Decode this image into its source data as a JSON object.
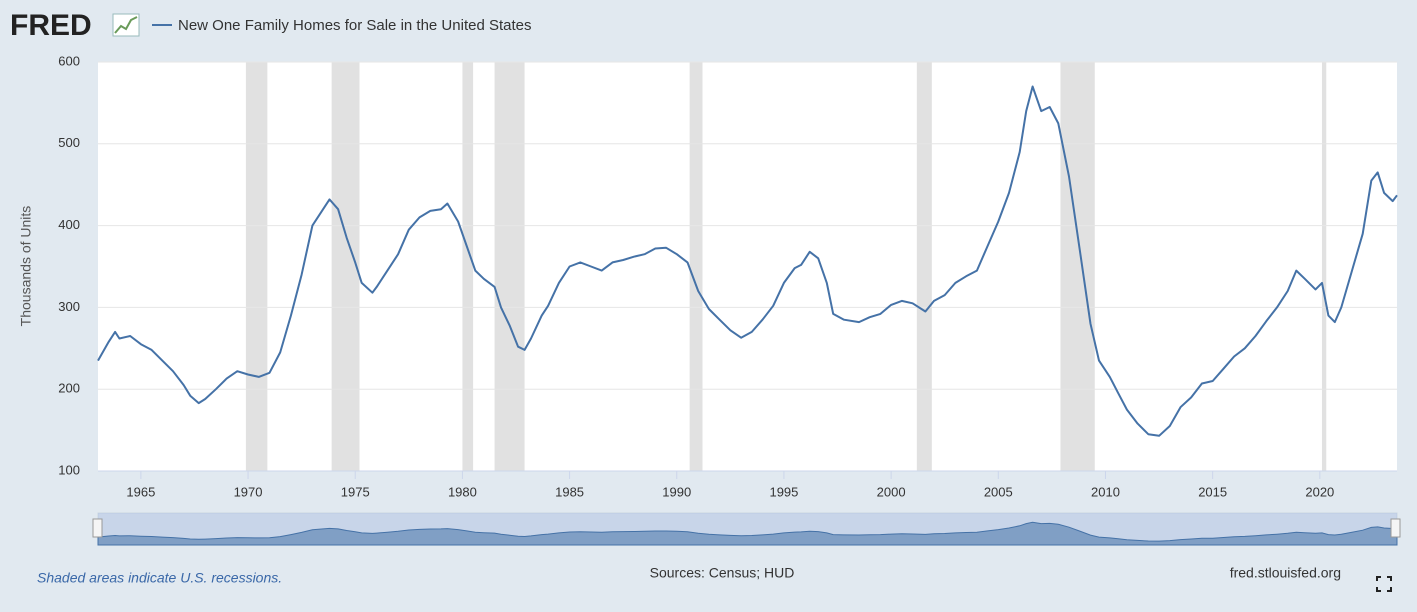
{
  "chart_data": {
    "type": "line",
    "series": [
      {
        "name": "New One Family Homes for Sale in the United States",
        "color": "#4572a7",
        "values": [
          235,
          258,
          270,
          262,
          265,
          255,
          248,
          235,
          222,
          205,
          192,
          183,
          188,
          200,
          213,
          222,
          218,
          215,
          220,
          245,
          290,
          340,
          400,
          420,
          432,
          420,
          385,
          355,
          330,
          318,
          325,
          345,
          365,
          395,
          410,
          418,
          420,
          427,
          405,
          375,
          345,
          335,
          325,
          300,
          278,
          252,
          248,
          262,
          290,
          302,
          330,
          350,
          355,
          350,
          345,
          355,
          358,
          362,
          365,
          372,
          373,
          365,
          355,
          320,
          298,
          285,
          272,
          263,
          270,
          285,
          302,
          330,
          348,
          352,
          368,
          360,
          330,
          292,
          285,
          282,
          288,
          292,
          303,
          308,
          305,
          295,
          308,
          315,
          330,
          338,
          345,
          375,
          405,
          440,
          490,
          540,
          570,
          540,
          545,
          525,
          460,
          370,
          280,
          235,
          215,
          195,
          175,
          158,
          145,
          143,
          155,
          178,
          190,
          207,
          210,
          225,
          240,
          250,
          265,
          283,
          300,
          320,
          345,
          335,
          322,
          330,
          290,
          282,
          300,
          345,
          390,
          455,
          465,
          440,
          430,
          437
        ]
      }
    ],
    "x": [
      1963.0,
      1963.5,
      1963.8,
      1964.0,
      1964.5,
      1965.0,
      1965.5,
      1966.0,
      1966.5,
      1967.0,
      1967.3,
      1967.7,
      1968.0,
      1968.5,
      1969.0,
      1969.5,
      1970.0,
      1970.5,
      1971.0,
      1971.5,
      1972.0,
      1972.5,
      1973.0,
      1973.5,
      1973.8,
      1974.2,
      1974.6,
      1975.0,
      1975.3,
      1975.8,
      1976.0,
      1976.5,
      1977.0,
      1977.5,
      1978.0,
      1978.5,
      1979.0,
      1979.3,
      1979.8,
      1980.2,
      1980.6,
      1981.0,
      1981.5,
      1981.8,
      1982.2,
      1982.6,
      1982.9,
      1983.2,
      1983.7,
      1984.0,
      1984.5,
      1985.0,
      1985.5,
      1986.0,
      1986.5,
      1987.0,
      1987.5,
      1988.0,
      1988.5,
      1989.0,
      1989.5,
      1990.0,
      1990.5,
      1991.0,
      1991.5,
      1992.0,
      1992.5,
      1993.0,
      1993.5,
      1994.0,
      1994.5,
      1995.0,
      1995.5,
      1995.8,
      1996.2,
      1996.6,
      1997.0,
      1997.3,
      1997.8,
      1998.5,
      1999.0,
      1999.5,
      2000.0,
      2000.5,
      2001.0,
      2001.6,
      2002.0,
      2002.5,
      2003.0,
      2003.5,
      2004.0,
      2004.5,
      2005.0,
      2005.5,
      2006.0,
      2006.3,
      2006.6,
      2007.0,
      2007.4,
      2007.8,
      2008.3,
      2008.8,
      2009.3,
      2009.7,
      2010.2,
      2010.6,
      2011.0,
      2011.5,
      2012.0,
      2012.5,
      2013.0,
      2013.5,
      2014.0,
      2014.5,
      2015.0,
      2015.5,
      2016.0,
      2016.5,
      2017.0,
      2017.5,
      2018.0,
      2018.5,
      2018.9,
      2019.3,
      2019.8,
      2020.1,
      2020.4,
      2020.7,
      2021.0,
      2021.5,
      2022.0,
      2022.4,
      2022.7,
      2023.0,
      2023.4,
      2023.6
    ],
    "recessions": [
      [
        1969.9,
        1970.9
      ],
      [
        1973.9,
        1975.2
      ],
      [
        1980.0,
        1980.5
      ],
      [
        1981.5,
        1982.9
      ],
      [
        1990.6,
        1991.2
      ],
      [
        2001.2,
        2001.9
      ],
      [
        2007.9,
        2009.5
      ],
      [
        2020.1,
        2020.3
      ]
    ],
    "xlim": [
      1963.0,
      2023.6
    ],
    "xticks": [
      1965,
      1970,
      1975,
      1980,
      1985,
      1990,
      1995,
      2000,
      2005,
      2010,
      2015,
      2020
    ],
    "ylim": [
      100,
      600
    ],
    "yticks": [
      100,
      200,
      300,
      400,
      500,
      600
    ],
    "grid": true,
    "y_label": "Thousands of Units",
    "note": "Shaded areas indicate U.S. recessions.",
    "source": "Sources: Census; HUD",
    "site": "fred.stlouisfed.org"
  }
}
